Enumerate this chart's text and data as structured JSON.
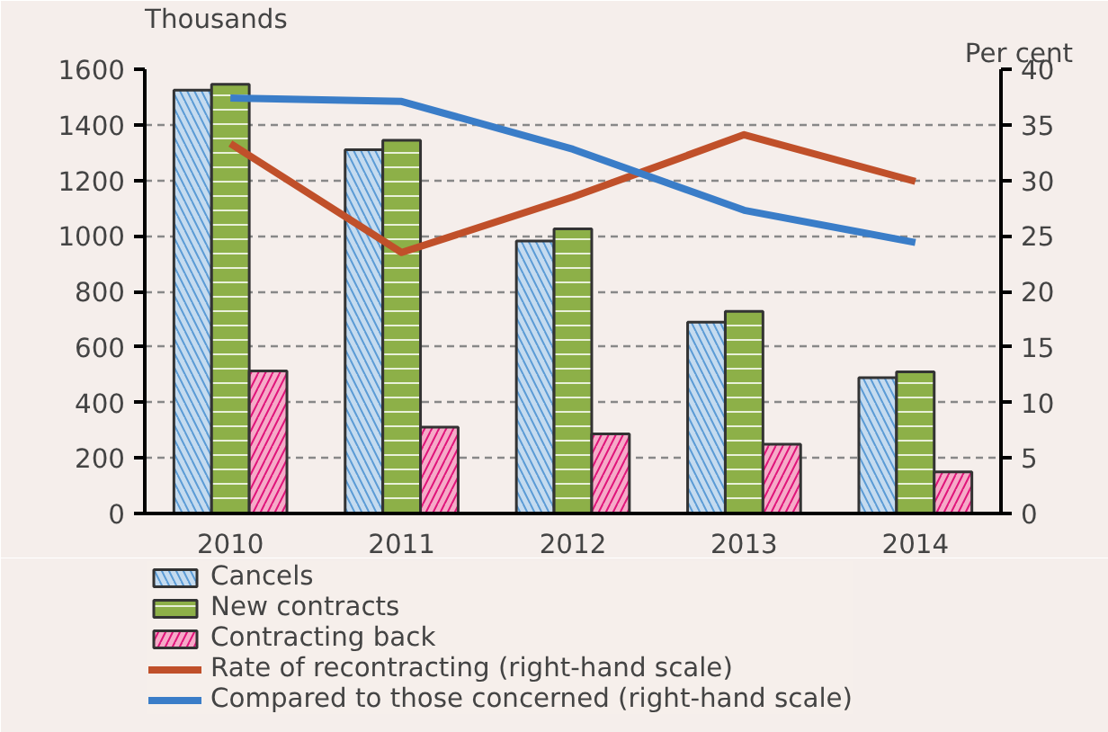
{
  "chart_data": {
    "type": "bar",
    "ylabel": "Thousands",
    "y2label": "Per cent",
    "categories": [
      "2010",
      "2011",
      "2012",
      "2013",
      "2014"
    ],
    "series": [
      {
        "name": "Cancels",
        "color": "#c5dbef",
        "values": [
          1525,
          1310,
          981,
          689,
          489
        ]
      },
      {
        "name": "New contracts",
        "color": "#8db048",
        "values": [
          1546,
          1344,
          1025,
          728,
          510
        ]
      },
      {
        "name": "Contracting back",
        "color": "#f6aac8",
        "values": [
          513,
          311,
          287,
          249,
          150
        ]
      },
      {
        "name": "Rate of recontracting (right-hand scale)",
        "type": "line",
        "axis": "y2",
        "color": "#c0502a",
        "values": [
          33.3,
          23.5,
          28.5,
          34.1,
          29.9
        ]
      },
      {
        "name": "Compared to those concerned (right-hand scale)",
        "type": "line",
        "axis": "y2",
        "color": "#3a7dc8",
        "values": [
          37.4,
          37.1,
          32.8,
          27.3,
          24.4
        ]
      }
    ],
    "ylim": [
      0,
      1600
    ],
    "yticks": [
      0,
      200,
      400,
      600,
      800,
      1000,
      1200,
      1400,
      1600
    ],
    "y2lim": [
      0,
      40
    ],
    "y2ticks": [
      0,
      5,
      10,
      15,
      20,
      25,
      30,
      35,
      40
    ],
    "grid": "y",
    "legend": "bottom"
  }
}
